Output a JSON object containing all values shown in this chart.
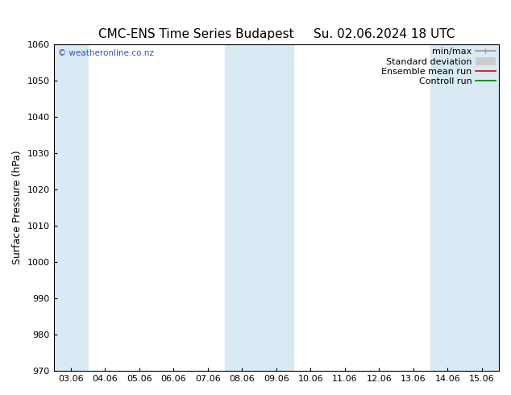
{
  "title_left": "CMC-ENS Time Series Budapest",
  "title_right": "Su. 02.06.2024 18 UTC",
  "ylabel": "Surface Pressure (hPa)",
  "ylim": [
    970,
    1060
  ],
  "yticks": [
    970,
    980,
    990,
    1000,
    1010,
    1020,
    1030,
    1040,
    1050,
    1060
  ],
  "xtick_labels": [
    "03.06",
    "04.06",
    "05.06",
    "06.06",
    "07.06",
    "08.06",
    "09.06",
    "10.06",
    "11.06",
    "12.06",
    "13.06",
    "14.06",
    "15.06"
  ],
  "blue_band_indices": [
    0,
    5,
    6,
    11,
    12
  ],
  "blue_band_color": "#daeaf5",
  "watermark": "© weatheronline.co.nz",
  "watermark_color": "#3355bb",
  "legend_items": [
    {
      "label": "min/max",
      "color": "#999999",
      "lw": 1.2,
      "style": "line_with_caps"
    },
    {
      "label": "Standard deviation",
      "color": "#cccccc",
      "lw": 7,
      "style": "thick"
    },
    {
      "label": "Ensemble mean run",
      "color": "#dd0000",
      "lw": 1.2,
      "style": "line"
    },
    {
      "label": "Controll run",
      "color": "#007700",
      "lw": 1.2,
      "style": "line"
    }
  ],
  "bg_color": "#ffffff",
  "plot_bg_color": "#ffffff",
  "title_fontsize": 11,
  "tick_fontsize": 8,
  "ylabel_fontsize": 9,
  "legend_fontsize": 8
}
